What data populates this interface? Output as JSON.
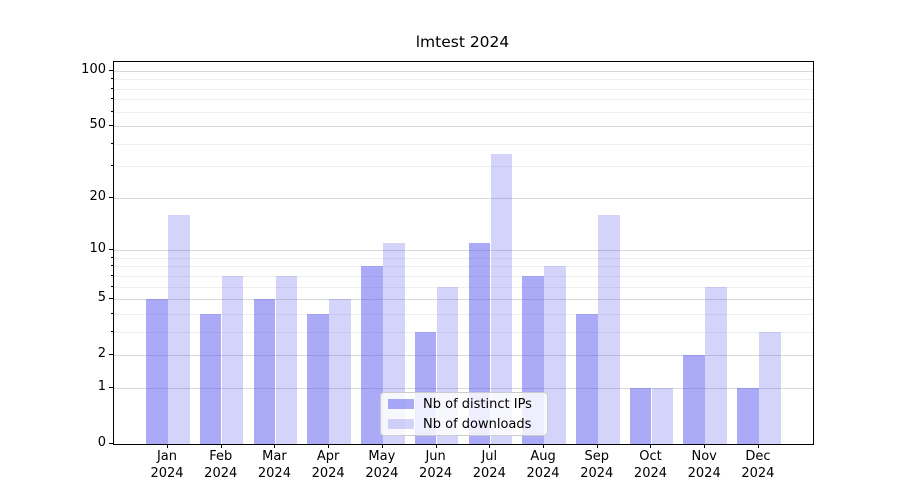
{
  "figure": {
    "title": "lmtest 2024"
  },
  "chart_data": {
    "type": "bar",
    "title": "lmtest 2024",
    "categories": [
      "Jan",
      "Feb",
      "Mar",
      "Apr",
      "May",
      "Jun",
      "Jul",
      "Aug",
      "Sep",
      "Oct",
      "Nov",
      "Dec"
    ],
    "year_label": "2024",
    "series": [
      {
        "name": "Nb of distinct IPs",
        "values": [
          5,
          4,
          5,
          4,
          8,
          3,
          11,
          7,
          4,
          1,
          2,
          1
        ]
      },
      {
        "name": "Nb of downloads",
        "values": [
          16,
          7,
          7,
          5,
          11,
          6,
          35,
          8,
          16,
          1,
          6,
          3
        ]
      }
    ],
    "xlabel": "",
    "ylabel": "",
    "yscale": "log1p",
    "major_yticks": [
      0,
      1,
      2,
      5,
      10,
      20,
      50,
      100
    ],
    "minor_yticks": [
      3,
      4,
      6,
      7,
      8,
      9,
      30,
      40,
      60,
      70,
      80,
      90
    ],
    "ylim": [
      0,
      112
    ],
    "grid": true,
    "legend_position": "lower center"
  },
  "legend": {
    "items": [
      {
        "label": "Nb of distinct IPs",
        "series_index": 0
      },
      {
        "label": "Nb of downloads",
        "series_index": 1
      }
    ]
  },
  "colors": {
    "bar_base": "#5555f0",
    "ips_fill": "rgba(85,85,240,0.5)",
    "downloads_fill": "rgba(85,85,240,0.25)",
    "major_grid": "#d9d9d9",
    "minor_grid": "#efefef",
    "axis": "#000000",
    "text": "#000000",
    "legend_bg": "rgba(255,255,255,0.8)",
    "legend_border": "#cccccc"
  }
}
